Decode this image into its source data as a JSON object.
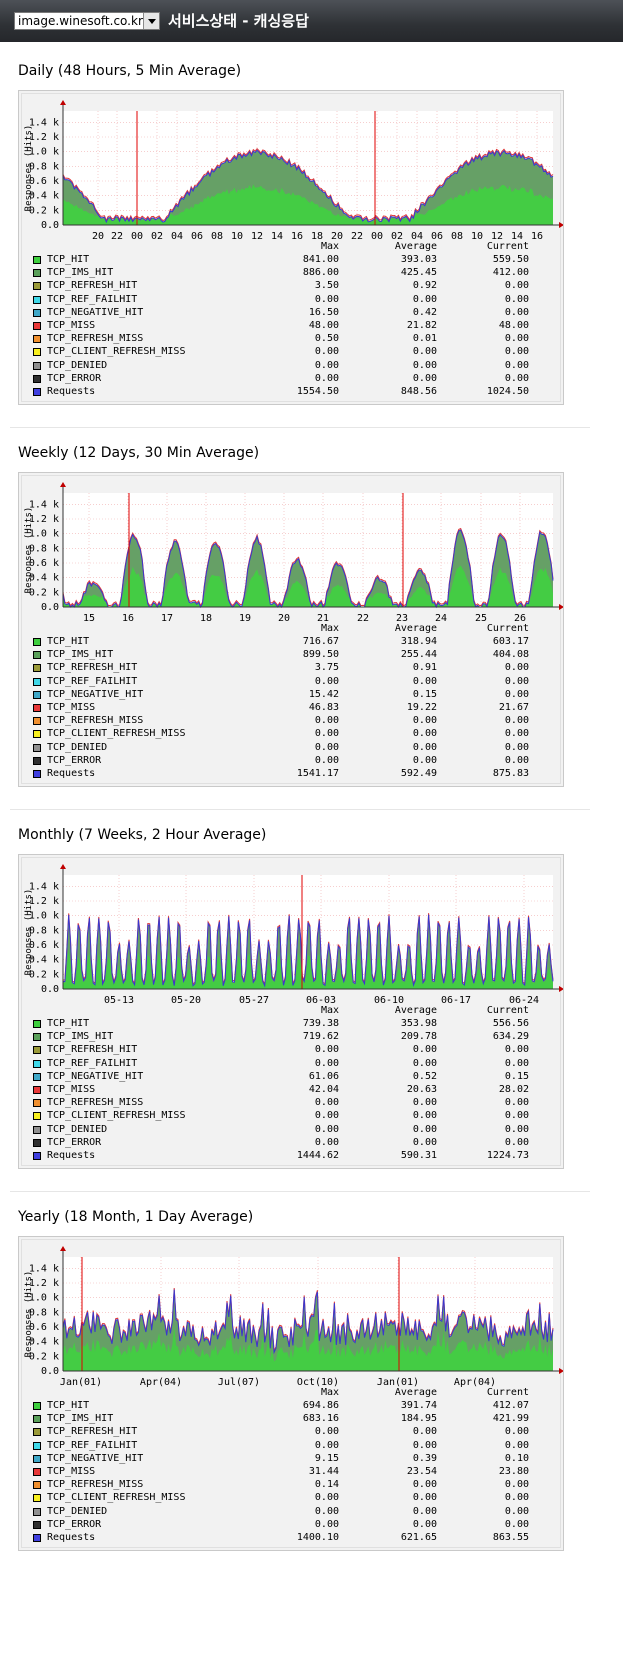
{
  "header": {
    "host": "image.winesoft.co.kr",
    "title": "서비스상태 - 캐싱응답"
  },
  "colors": {
    "hit": "#44cc44",
    "ims": "#66a066",
    "requests": "#3838d0",
    "miss": "#e03838",
    "cursor": "#e00000"
  },
  "legend_header": {
    "max": "Max",
    "avg": "Average",
    "cur": "Current"
  },
  "legend_names": [
    "TCP_HIT",
    "TCP_IMS_HIT",
    "TCP_REFRESH_HIT",
    "TCP_REF_FAILHIT",
    "TCP_NEGATIVE_HIT",
    "TCP_MISS",
    "TCP_REFRESH_MISS",
    "TCP_CLIENT_REFRESH_MISS",
    "TCP_DENIED",
    "TCP_ERROR",
    "Requests"
  ],
  "legend_colors": [
    "#3ecf3e",
    "#5aa05a",
    "#9a9a38",
    "#40d8e8",
    "#40a8c8",
    "#e83838",
    "#f09030",
    "#f8f020",
    "#909090",
    "#303030",
    "#4040e0"
  ],
  "charts": [
    {
      "title": "Daily (48 Hours, 5 Min Average)",
      "ylabel": "Responses (Hits)",
      "ticks": [
        "20",
        "22",
        "00",
        "02",
        "04",
        "06",
        "08",
        "10",
        "12",
        "14",
        "16",
        "18",
        "20",
        "22",
        "00",
        "02",
        "04",
        "06",
        "08",
        "10",
        "12",
        "14",
        "16"
      ],
      "yticks": [
        "0.0",
        "0.2 k",
        "0.4 k",
        "0.6 k",
        "0.8 k",
        "1.0 k",
        "1.2 k",
        "1.4 k"
      ],
      "rows": [
        [
          "841.00",
          "393.03",
          "559.50"
        ],
        [
          "886.00",
          "425.45",
          "412.00"
        ],
        [
          "3.50",
          "0.92",
          "0.00"
        ],
        [
          "0.00",
          "0.00",
          "0.00"
        ],
        [
          "16.50",
          "0.42",
          "0.00"
        ],
        [
          "48.00",
          "21.82",
          "48.00"
        ],
        [
          "0.50",
          "0.01",
          "0.00"
        ],
        [
          "0.00",
          "0.00",
          "0.00"
        ],
        [
          "0.00",
          "0.00",
          "0.00"
        ],
        [
          "0.00",
          "0.00",
          "0.00"
        ],
        [
          "1554.50",
          "848.56",
          "1024.50"
        ]
      ]
    },
    {
      "title": "Weekly (12 Days, 30 Min Average)",
      "ylabel": "Responses (Hits)",
      "ticks": [
        "15",
        "16",
        "17",
        "18",
        "19",
        "20",
        "21",
        "22",
        "23",
        "24",
        "25",
        "26"
      ],
      "yticks": [
        "0.0",
        "0.2 k",
        "0.4 k",
        "0.6 k",
        "0.8 k",
        "1.0 k",
        "1.2 k",
        "1.4 k"
      ],
      "rows": [
        [
          "716.67",
          "318.94",
          "603.17"
        ],
        [
          "899.50",
          "255.44",
          "404.08"
        ],
        [
          "3.75",
          "0.91",
          "0.00"
        ],
        [
          "0.00",
          "0.00",
          "0.00"
        ],
        [
          "15.42",
          "0.15",
          "0.00"
        ],
        [
          "46.83",
          "19.22",
          "21.67"
        ],
        [
          "0.00",
          "0.00",
          "0.00"
        ],
        [
          "0.00",
          "0.00",
          "0.00"
        ],
        [
          "0.00",
          "0.00",
          "0.00"
        ],
        [
          "0.00",
          "0.00",
          "0.00"
        ],
        [
          "1541.17",
          "592.49",
          "875.83"
        ]
      ]
    },
    {
      "title": "Monthly (7 Weeks, 2 Hour Average)",
      "ylabel": "Responses (Hits)",
      "ticks": [
        "05-13",
        "05-20",
        "05-27",
        "06-03",
        "06-10",
        "06-17",
        "06-24"
      ],
      "yticks": [
        "0.0",
        "0.2 k",
        "0.4 k",
        "0.6 k",
        "0.8 k",
        "1.0 k",
        "1.2 k",
        "1.4 k"
      ],
      "rows": [
        [
          "739.38",
          "353.98",
          "556.56"
        ],
        [
          "719.62",
          "209.78",
          "634.29"
        ],
        [
          "0.00",
          "0.00",
          "0.00"
        ],
        [
          "0.00",
          "0.00",
          "0.00"
        ],
        [
          "61.06",
          "0.52",
          "0.15"
        ],
        [
          "42.04",
          "20.63",
          "28.02"
        ],
        [
          "0.00",
          "0.00",
          "0.00"
        ],
        [
          "0.00",
          "0.00",
          "0.00"
        ],
        [
          "0.00",
          "0.00",
          "0.00"
        ],
        [
          "0.00",
          "0.00",
          "0.00"
        ],
        [
          "1444.62",
          "590.31",
          "1224.73"
        ]
      ]
    },
    {
      "title": "Yearly (18 Month, 1 Day Average)",
      "ylabel": "Responses (Hits)",
      "ticks": [
        "Jan(01)",
        "Apr(04)",
        "Jul(07)",
        "Oct(10)",
        "Jan(01)",
        "Apr(04)"
      ],
      "yticks": [
        "0.0",
        "0.2 k",
        "0.4 k",
        "0.6 k",
        "0.8 k",
        "1.0 k",
        "1.2 k",
        "1.4 k"
      ],
      "rows": [
        [
          "694.86",
          "391.74",
          "412.07"
        ],
        [
          "683.16",
          "184.95",
          "421.99"
        ],
        [
          "0.00",
          "0.00",
          "0.00"
        ],
        [
          "0.00",
          "0.00",
          "0.00"
        ],
        [
          "9.15",
          "0.39",
          "0.10"
        ],
        [
          "31.44",
          "23.54",
          "23.80"
        ],
        [
          "0.14",
          "0.00",
          "0.00"
        ],
        [
          "0.00",
          "0.00",
          "0.00"
        ],
        [
          "0.00",
          "0.00",
          "0.00"
        ],
        [
          "0.00",
          "0.00",
          "0.00"
        ],
        [
          "1400.10",
          "621.65",
          "863.55"
        ]
      ]
    }
  ]
}
